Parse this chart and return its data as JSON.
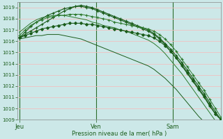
{
  "background_color": "#cce8e8",
  "grid_color": "#f0c0c0",
  "line_color_dark": "#1a5c1a",
  "line_color_mid": "#2d7a2d",
  "xlabel": "Pression niveau de la mer( hPa )",
  "ylim": [
    1009,
    1019.5
  ],
  "yticks": [
    1009,
    1010,
    1011,
    1012,
    1013,
    1014,
    1015,
    1016,
    1017,
    1018,
    1019
  ],
  "xtick_labels": [
    "Jeu",
    "Ven",
    "Sam"
  ],
  "vline_positions": [
    0.0,
    0.38,
    0.76
  ],
  "n_points": 37,
  "series": [
    [
      1016.3,
      1016.6,
      1016.9,
      1017.2,
      1017.5,
      1017.8,
      1018.1,
      1018.4,
      1018.7,
      1018.9,
      1019.1,
      1019.2,
      1019.1,
      1019.0,
      1018.8,
      1018.6,
      1018.4,
      1018.2,
      1018.0,
      1017.8,
      1017.6,
      1017.4,
      1017.2,
      1017.0,
      1016.7,
      1016.3,
      1015.8,
      1015.3,
      1014.7,
      1014.1,
      1013.4,
      1012.7,
      1012.0,
      1011.3,
      1010.5,
      1009.7,
      1009.0
    ],
    [
      1016.3,
      1016.8,
      1017.3,
      1017.7,
      1018.0,
      1018.3,
      1018.5,
      1018.7,
      1018.9,
      1019.0,
      1019.1,
      1019.1,
      1019.0,
      1018.9,
      1018.7,
      1018.5,
      1018.3,
      1018.1,
      1017.9,
      1017.7,
      1017.5,
      1017.3,
      1017.1,
      1016.9,
      1016.6,
      1016.2,
      1015.7,
      1015.1,
      1014.5,
      1013.8,
      1013.1,
      1012.4,
      1011.7,
      1011.0,
      1010.2,
      1009.5,
      1009.0
    ],
    [
      1016.5,
      1017.0,
      1017.4,
      1017.7,
      1017.9,
      1018.1,
      1018.2,
      1018.3,
      1018.3,
      1018.4,
      1018.4,
      1018.4,
      1018.3,
      1018.2,
      1018.1,
      1018.0,
      1017.9,
      1017.7,
      1017.6,
      1017.5,
      1017.4,
      1017.3,
      1017.2,
      1017.1,
      1016.9,
      1016.6,
      1016.2,
      1015.7,
      1015.1,
      1014.4,
      1013.7,
      1013.0,
      1012.3,
      1011.6,
      1010.8,
      1010.0,
      1009.2
    ],
    [
      1016.3,
      1016.5,
      1016.7,
      1016.9,
      1017.1,
      1017.2,
      1017.3,
      1017.4,
      1017.5,
      1017.6,
      1017.6,
      1017.6,
      1017.5,
      1017.5,
      1017.4,
      1017.3,
      1017.2,
      1017.1,
      1017.0,
      1016.9,
      1016.8,
      1016.7,
      1016.6,
      1016.5,
      1016.3,
      1016.0,
      1015.6,
      1015.1,
      1014.5,
      1013.9,
      1013.2,
      1012.5,
      1011.8,
      1011.1,
      1010.3,
      1009.5,
      1009.0
    ],
    [
      1016.2,
      1016.3,
      1016.4,
      1016.5,
      1016.5,
      1016.6,
      1016.6,
      1016.6,
      1016.5,
      1016.4,
      1016.3,
      1016.2,
      1016.0,
      1015.8,
      1015.6,
      1015.4,
      1015.2,
      1015.0,
      1014.8,
      1014.6,
      1014.4,
      1014.2,
      1014.0,
      1013.8,
      1013.5,
      1013.1,
      1012.7,
      1012.2,
      1011.7,
      1011.1,
      1010.5,
      1009.9,
      1009.3,
      1008.8,
      1008.3,
      1007.9,
      1007.5
    ],
    [
      1016.8,
      1017.2,
      1017.6,
      1017.9,
      1018.1,
      1018.2,
      1018.3,
      1018.3,
      1018.3,
      1018.2,
      1018.1,
      1018.0,
      1017.9,
      1017.7,
      1017.6,
      1017.4,
      1017.3,
      1017.2,
      1017.0,
      1016.9,
      1016.7,
      1016.5,
      1016.3,
      1016.1,
      1015.8,
      1015.4,
      1014.9,
      1014.3,
      1013.7,
      1013.1,
      1012.4,
      1011.7,
      1011.0,
      1010.3,
      1009.6,
      1008.9,
      1009.0
    ]
  ],
  "series_styles": [
    {
      "color": "#1a5c1a",
      "marker": "+",
      "lw": 0.8,
      "ms": 3.0
    },
    {
      "color": "#1a5c1a",
      "marker": "+",
      "lw": 0.8,
      "ms": 3.0
    },
    {
      "color": "#2d7a2d",
      "marker": "+",
      "lw": 0.7,
      "ms": 2.5
    },
    {
      "color": "#1a5c1a",
      "marker": "D",
      "lw": 0.8,
      "ms": 2.0
    },
    {
      "color": "#1a5c1a",
      "marker": null,
      "lw": 0.7,
      "ms": 0
    },
    {
      "color": "#2d7a2d",
      "marker": null,
      "lw": 0.7,
      "ms": 0
    }
  ]
}
